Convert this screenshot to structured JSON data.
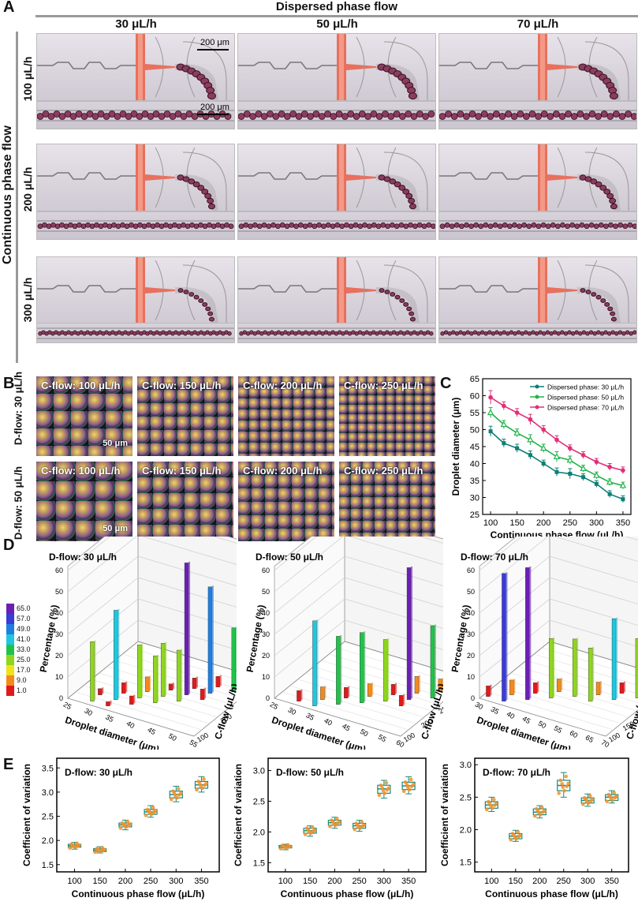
{
  "panelA": {
    "label": "A",
    "header": "Dispersed phase flow",
    "columns": [
      "30 μL/h",
      "50 μL/h",
      "70 μL/h"
    ],
    "row_axis": "Continuous phase flow",
    "rows": [
      "100 μL/h",
      "200 μL/h",
      "300 μL/h"
    ],
    "scale1": "200 μm",
    "scale2": "200 μm"
  },
  "panelB": {
    "label": "B",
    "row_labels": [
      "D-flow: 30 μL/h",
      "D-flow: 50 μL/h"
    ],
    "tiles": [
      "C-flow: 100 μL/h",
      "C-flow: 150 μL/h",
      "C-flow: 200 μL/h",
      "C-flow: 250 μL/h"
    ],
    "scale": "50 μm"
  },
  "panelC": {
    "label": "C"
  },
  "panelD": {
    "label": "D",
    "colorbar": [
      "65.0",
      "57.0",
      "49.0",
      "41.0",
      "33.0",
      "25.0",
      "17.0",
      "9.0",
      "1.0"
    ],
    "colorbar_colors": [
      "#6a1fb5",
      "#3b3bd6",
      "#1e7fe0",
      "#1fc7e0",
      "#22c24a",
      "#8fd61e",
      "#f2e21a",
      "#f58a1a",
      "#e01a1a"
    ],
    "plots": [
      {
        "title": "D-flow: 30 μL/h",
        "zlabel": "Percentage (%)",
        "xlabel": "Droplet diameter (μm)",
        "ylabel": "C-flow (μL/h)",
        "xticks": [
          "25",
          "30",
          "35",
          "40",
          "45",
          "50",
          "55"
        ],
        "yticks": [
          "100",
          "200",
          "300",
          "350"
        ],
        "zticks": [
          "0",
          "10",
          "20",
          "30",
          "40",
          "50",
          "60"
        ]
      },
      {
        "title": "D-flow: 50 μL/h",
        "zlabel": "Percentage (%)",
        "xlabel": "Droplet diameter (μm)",
        "ylabel": "C-flow (μL/h)",
        "xticks": [
          "25",
          "30",
          "35",
          "40",
          "45",
          "50",
          "55",
          "60"
        ],
        "yticks": [
          "100",
          "200",
          "250",
          "300",
          "350"
        ],
        "zticks": [
          "0",
          "10",
          "20",
          "30",
          "40",
          "50",
          "60"
        ]
      },
      {
        "title": "D-flow: 70 μL/h",
        "zlabel": "Percentage (%)",
        "xlabel": "Droplet diameter (μm)",
        "ylabel": "C-flow (μL/h)",
        "xticks": [
          "30",
          "35",
          "40",
          "45",
          "50",
          "55",
          "60",
          "65",
          "70"
        ],
        "yticks": [
          "100",
          "150",
          "200",
          "250",
          "300",
          "350"
        ],
        "zticks": [
          "0",
          "10",
          "20",
          "30",
          "40",
          "50",
          "60"
        ]
      }
    ]
  },
  "panelE": {
    "label": "E"
  },
  "chart_data": [
    {
      "type": "line",
      "title": "",
      "xlabel": "Continuous phase flow (μL/h)",
      "ylabel": "Droplet diameter (μm)",
      "x": [
        100,
        125,
        150,
        175,
        200,
        225,
        250,
        275,
        300,
        325,
        350
      ],
      "xticks": [
        100,
        150,
        200,
        250,
        300,
        350
      ],
      "yticks": [
        25,
        30,
        35,
        40,
        45,
        50,
        55,
        60,
        65
      ],
      "xlim": [
        85,
        365
      ],
      "ylim": [
        25,
        65
      ],
      "legend": "top-right",
      "series": [
        {
          "name": "Dispersed phase: 30 μL/h",
          "color": "#0f7f74",
          "marker": "square",
          "values": [
            49.5,
            46,
            44.5,
            42.5,
            40,
            37.5,
            37,
            36,
            34,
            31,
            29.5
          ],
          "errors": [
            1.5,
            1.2,
            1.2,
            1.2,
            1,
            1.2,
            1.5,
            1,
            1,
            1,
            1
          ]
        },
        {
          "name": "Dispersed phase: 50 μL/h",
          "color": "#22b24a",
          "marker": "triangle",
          "values": [
            55,
            51.5,
            49,
            47,
            44.5,
            42,
            41,
            38.5,
            36.5,
            34.5,
            33.5
          ],
          "errors": [
            1.5,
            1.2,
            1.2,
            1.5,
            1.2,
            1.5,
            1.2,
            1,
            1,
            1,
            1
          ]
        },
        {
          "name": "Dispersed phase: 70 μL/h",
          "color": "#e0307a",
          "marker": "circle",
          "values": [
            59.5,
            57,
            55,
            53,
            50,
            47,
            44.5,
            42.5,
            40.5,
            39,
            38
          ],
          "errors": [
            2,
            1.2,
            1.2,
            1.5,
            1.2,
            1.2,
            1,
            1,
            1,
            1,
            1
          ]
        }
      ]
    },
    {
      "type": "box",
      "title": "D-flow: 30 μL/h",
      "xlabel": "Continuous phase flow (μL/h)",
      "ylabel": "Coefficient of variation",
      "categories": [
        "100",
        "150",
        "200",
        "250",
        "300",
        "350"
      ],
      "ylim": [
        1.35,
        3.7
      ],
      "yticks": [
        1.5,
        2.0,
        2.5,
        3.0,
        3.5
      ],
      "box_stats": [
        {
          "min": 1.82,
          "q1": 1.86,
          "median": 1.89,
          "q3": 1.92,
          "max": 1.96
        },
        {
          "min": 1.74,
          "q1": 1.77,
          "median": 1.8,
          "q3": 1.83,
          "max": 1.87
        },
        {
          "min": 2.22,
          "q1": 2.28,
          "median": 2.32,
          "q3": 2.36,
          "max": 2.42
        },
        {
          "min": 2.48,
          "q1": 2.54,
          "median": 2.59,
          "q3": 2.64,
          "max": 2.72
        },
        {
          "min": 2.8,
          "q1": 2.88,
          "median": 2.95,
          "q3": 3.02,
          "max": 3.12
        },
        {
          "min": 3.0,
          "q1": 3.08,
          "median": 3.15,
          "q3": 3.22,
          "max": 3.32
        }
      ]
    },
    {
      "type": "box",
      "title": "D-flow: 50 μL/h",
      "xlabel": "Continuous phase flow (μL/h)",
      "ylabel": "Coefficient of variation",
      "categories": [
        "100",
        "150",
        "200",
        "250",
        "300",
        "350"
      ],
      "ylim": [
        1.35,
        3.2
      ],
      "yticks": [
        1.5,
        2.0,
        2.5,
        3.0
      ],
      "box_stats": [
        {
          "min": 1.71,
          "q1": 1.74,
          "median": 1.76,
          "q3": 1.78,
          "max": 1.8
        },
        {
          "min": 1.93,
          "q1": 1.98,
          "median": 2.02,
          "q3": 2.06,
          "max": 2.1
        },
        {
          "min": 2.06,
          "q1": 2.11,
          "median": 2.15,
          "q3": 2.19,
          "max": 2.24
        },
        {
          "min": 2.01,
          "q1": 2.06,
          "median": 2.1,
          "q3": 2.14,
          "max": 2.19
        },
        {
          "min": 2.55,
          "q1": 2.63,
          "median": 2.7,
          "q3": 2.76,
          "max": 2.84
        },
        {
          "min": 2.62,
          "q1": 2.69,
          "median": 2.75,
          "q3": 2.81,
          "max": 2.9
        }
      ]
    },
    {
      "type": "box",
      "title": "D-flow: 70 μL/h",
      "xlabel": "Continuous phase flow (μL/h)",
      "ylabel": "Coefficient of variation",
      "categories": [
        "100",
        "150",
        "200",
        "250",
        "300",
        "350"
      ],
      "ylim": [
        1.35,
        3.1
      ],
      "yticks": [
        1.5,
        2.0,
        2.5,
        3.0
      ],
      "box_stats": [
        {
          "min": 2.28,
          "q1": 2.33,
          "median": 2.38,
          "q3": 2.43,
          "max": 2.5
        },
        {
          "min": 1.82,
          "q1": 1.86,
          "median": 1.9,
          "q3": 1.94,
          "max": 1.99
        },
        {
          "min": 2.18,
          "q1": 2.23,
          "median": 2.27,
          "q3": 2.32,
          "max": 2.37
        },
        {
          "min": 2.5,
          "q1": 2.6,
          "median": 2.68,
          "q3": 2.76,
          "max": 2.88
        },
        {
          "min": 2.36,
          "q1": 2.41,
          "median": 2.45,
          "q3": 2.49,
          "max": 2.55
        },
        {
          "min": 2.41,
          "q1": 2.45,
          "median": 2.5,
          "q3": 2.54,
          "max": 2.6
        }
      ]
    }
  ]
}
